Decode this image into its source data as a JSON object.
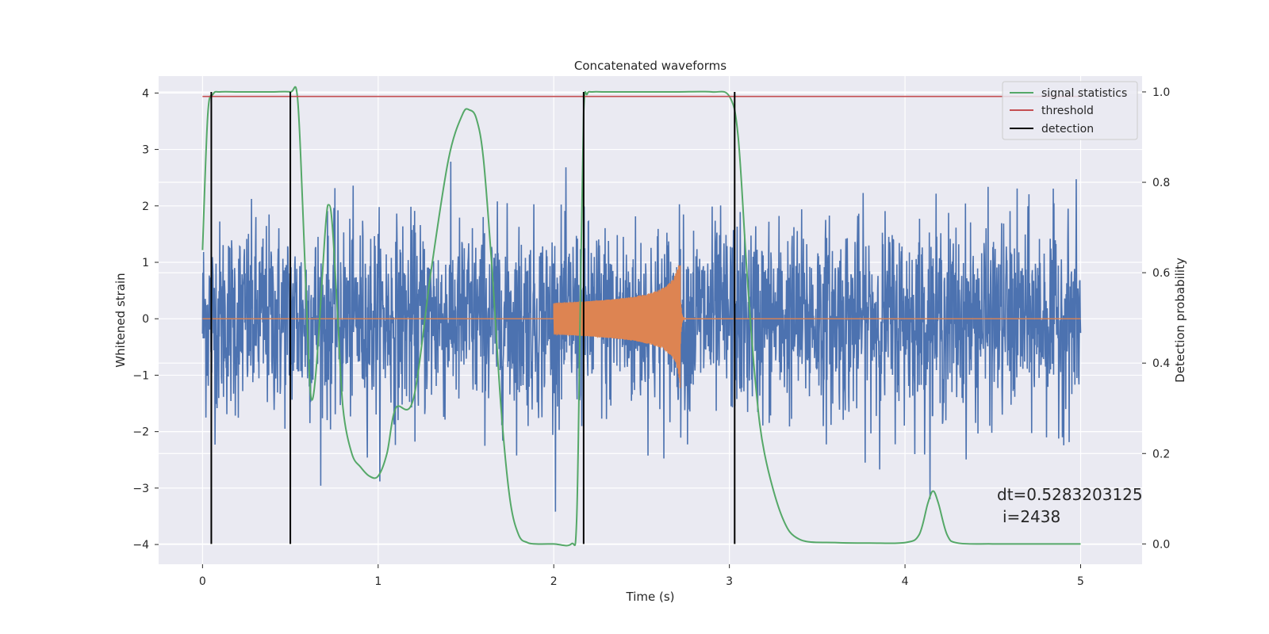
{
  "chart_data": {
    "type": "line",
    "title": "Concatenated waveforms",
    "xlabel": "Time (s)",
    "ylabel": "Whitened strain",
    "y2label": "Detection probability",
    "xlim": [
      -0.25,
      5.35
    ],
    "ylim": [
      -4.35,
      4.3
    ],
    "y2lim": [
      -0.045,
      1.035
    ],
    "x_ticks": [
      0,
      1,
      2,
      3,
      4,
      5
    ],
    "x_tick_labels": [
      "0",
      "1",
      "2",
      "3",
      "4",
      "5"
    ],
    "y_ticks": [
      -4,
      -3,
      -2,
      -1,
      0,
      1,
      2,
      3,
      4
    ],
    "y_tick_labels": [
      "−4",
      "−3",
      "−2",
      "−1",
      "0",
      "1",
      "2",
      "3",
      "4"
    ],
    "y2_ticks": [
      0.0,
      0.2,
      0.4,
      0.6,
      0.8,
      1.0
    ],
    "y2_tick_labels": [
      "0.0",
      "0.2",
      "0.4",
      "0.6",
      "0.8",
      "1.0"
    ],
    "grid": true,
    "legend_position": "top-right",
    "legend": [
      {
        "label": "signal statistics",
        "color": "#55a868"
      },
      {
        "label": "threshold",
        "color": "#c44e52"
      },
      {
        "label": "detection",
        "color": "#000000"
      }
    ],
    "series": [
      {
        "name": "",
        "kind": "noise",
        "axis": "left",
        "color": "#4c72b0",
        "x_range": [
          0,
          5
        ],
        "amplitude_sd": 0.85
      },
      {
        "name": "",
        "kind": "chirp",
        "axis": "left",
        "color": "#dd8452",
        "x_range": [
          2.0,
          2.72
        ],
        "peak_amplitude": 1.3
      },
      {
        "name": "signal statistics",
        "axis": "right",
        "color": "#55a868",
        "x": [
          0,
          0.03,
          0.06,
          0.1,
          0.2,
          0.3,
          0.4,
          0.5,
          0.54,
          0.57,
          0.6,
          0.62,
          0.65,
          0.7,
          0.72,
          0.74,
          0.77,
          0.8,
          0.85,
          0.9,
          0.95,
          1.0,
          1.05,
          1.1,
          1.2,
          1.3,
          1.4,
          1.48,
          1.52,
          1.56,
          1.6,
          1.65,
          1.7,
          1.75,
          1.8,
          1.85,
          1.9,
          2.0,
          2.1,
          2.13,
          2.15,
          2.17,
          2.19,
          2.22,
          2.3,
          2.5,
          2.7,
          2.9,
          3.0,
          3.05,
          3.1,
          3.15,
          3.2,
          3.3,
          3.4,
          3.6,
          3.8,
          4.0,
          4.08,
          4.13,
          4.16,
          4.19,
          4.24,
          4.3,
          4.5,
          4.8,
          5.0
        ],
        "y": [
          0.65,
          0.95,
          0.995,
          1.0,
          1.0,
          1.0,
          1.0,
          1.0,
          0.99,
          0.75,
          0.45,
          0.32,
          0.4,
          0.7,
          0.75,
          0.7,
          0.5,
          0.3,
          0.2,
          0.17,
          0.15,
          0.15,
          0.2,
          0.3,
          0.32,
          0.6,
          0.85,
          0.95,
          0.96,
          0.94,
          0.85,
          0.6,
          0.3,
          0.1,
          0.02,
          0.003,
          0.0,
          0.0,
          0.0,
          0.05,
          0.5,
          0.95,
          0.995,
          1.0,
          1.0,
          1.0,
          1.0,
          1.0,
          0.99,
          0.9,
          0.6,
          0.35,
          0.2,
          0.06,
          0.01,
          0.003,
          0.002,
          0.003,
          0.02,
          0.09,
          0.117,
          0.09,
          0.02,
          0.002,
          0.0,
          0.0,
          0.0
        ]
      },
      {
        "name": "threshold",
        "axis": "right",
        "color": "#c44e52",
        "x": [
          0,
          5
        ],
        "y": [
          0.99,
          0.99
        ]
      },
      {
        "name": "detection",
        "axis": "right",
        "color": "#000000",
        "kind": "vlines",
        "x": [
          0.05,
          0.5,
          2.17,
          3.03
        ],
        "y_range": [
          0.0,
          1.0
        ]
      }
    ],
    "annotation": {
      "line1": "dt=0.5283203125",
      "line2": "i=2438"
    }
  }
}
